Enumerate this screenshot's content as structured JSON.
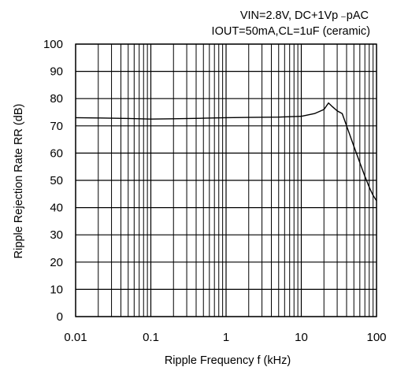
{
  "chart_data": {
    "type": "line",
    "title": "",
    "annotations": [
      "VIN=2.8V, DC+1Vp ₋pAC",
      "IOUT=50mA,CL=1uF (ceramic)"
    ],
    "xlabel": "Ripple Frequency f (kHz)",
    "ylabel": "Ripple Rejection Rate RR (dB)",
    "x_scale": "log",
    "xlim": [
      0.01,
      100
    ],
    "ylim": [
      0,
      100
    ],
    "x_ticks": [
      0.01,
      0.1,
      1,
      10,
      100
    ],
    "x_tick_labels": [
      "0.01",
      "0.1",
      "1",
      "10",
      "100"
    ],
    "y_ticks": [
      0,
      10,
      20,
      30,
      40,
      50,
      60,
      70,
      80,
      90,
      100
    ],
    "y_tick_labels": [
      "0",
      "10",
      "20",
      "30",
      "40",
      "50",
      "60",
      "70",
      "80",
      "90",
      "100"
    ],
    "grid": true,
    "legend": "none",
    "series": [
      {
        "x": [
          0.01,
          0.02,
          0.05,
          0.1,
          0.2,
          0.5,
          1,
          2,
          5,
          10,
          15,
          20,
          23,
          26,
          30,
          35,
          40,
          50,
          60,
          70,
          80,
          90,
          100
        ],
        "y": [
          73.0,
          72.9,
          72.7,
          72.5,
          72.6,
          72.8,
          73.0,
          73.1,
          73.2,
          73.5,
          74.5,
          76.0,
          78.4,
          77.0,
          75.5,
          74.5,
          70.0,
          62.5,
          56.5,
          51.5,
          47.5,
          44.5,
          42.5
        ],
        "color": "#000000"
      }
    ]
  }
}
